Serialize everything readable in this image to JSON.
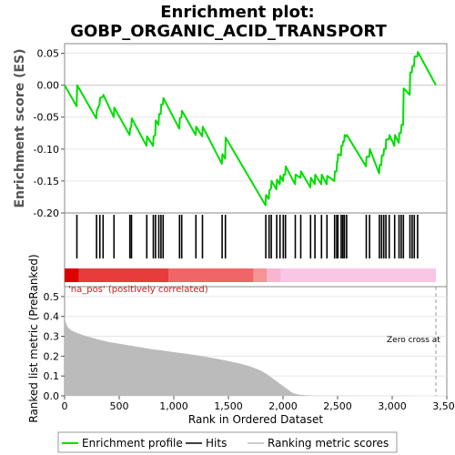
{
  "title_line1": "Enrichment plot:",
  "title_line2": "GOBP_ORGANIC_ACID_TRANSPORT",
  "chart_data": {
    "type": "line",
    "xlim": [
      0,
      3500
    ],
    "x_ticks": [
      "0",
      "500",
      "1,000",
      "1,500",
      "2,000",
      "2,500",
      "3,000",
      "3,500"
    ],
    "x_tick_values": [
      0,
      500,
      1000,
      1500,
      2000,
      2500,
      3000,
      3500
    ],
    "xlabel": "Rank in Ordered Dataset",
    "es_ylabel": "Enrichment score (ES)",
    "es_ylim": [
      -0.2,
      0.065
    ],
    "es_ticks": [
      "0.05",
      "0.00",
      "-0.05",
      "-0.10",
      "-0.15",
      "-0.20"
    ],
    "es_tick_values": [
      0.05,
      0.0,
      -0.05,
      -0.1,
      -0.15,
      -0.2
    ],
    "es_profile_x": [
      0,
      110,
      115,
      290,
      295,
      320,
      325,
      350,
      355,
      450,
      455,
      595,
      600,
      610,
      615,
      750,
      755,
      810,
      815,
      830,
      835,
      860,
      865,
      880,
      885,
      900,
      905,
      1050,
      1055,
      1070,
      1075,
      1200,
      1205,
      1260,
      1265,
      1440,
      1445,
      1470,
      1475,
      1840,
      1845,
      1870,
      1875,
      1890,
      1895,
      1940,
      1945,
      1970,
      1975,
      2000,
      2005,
      2020,
      2025,
      2110,
      2115,
      2160,
      2165,
      2250,
      2255,
      2290,
      2295,
      2350,
      2355,
      2400,
      2405,
      2470,
      2475,
      2490,
      2495,
      2500,
      2505,
      2530,
      2535,
      2545,
      2550,
      2560,
      2565,
      2580,
      2585,
      2760,
      2765,
      2790,
      2795,
      2880,
      2885,
      2900,
      2905,
      2920,
      2925,
      2940,
      2945,
      2970,
      2975,
      3020,
      3025,
      3060,
      3065,
      3080,
      3085,
      3100,
      3105,
      3160,
      3165,
      3180,
      3185,
      3200,
      3205,
      3230,
      3235,
      3400
    ],
    "es_profile_y": [
      0.0,
      -0.033,
      0.0,
      -0.052,
      -0.04,
      -0.03,
      -0.02,
      -0.018,
      -0.015,
      -0.05,
      -0.035,
      -0.078,
      -0.068,
      -0.065,
      -0.052,
      -0.095,
      -0.08,
      -0.095,
      -0.08,
      -0.078,
      -0.055,
      -0.062,
      -0.045,
      -0.045,
      -0.03,
      -0.03,
      -0.02,
      -0.068,
      -0.052,
      -0.05,
      -0.04,
      -0.078,
      -0.065,
      -0.08,
      -0.065,
      -0.123,
      -0.108,
      -0.115,
      -0.082,
      -0.188,
      -0.172,
      -0.178,
      -0.165,
      -0.162,
      -0.15,
      -0.163,
      -0.148,
      -0.155,
      -0.142,
      -0.15,
      -0.14,
      -0.14,
      -0.127,
      -0.155,
      -0.14,
      -0.145,
      -0.135,
      -0.16,
      -0.145,
      -0.155,
      -0.14,
      -0.155,
      -0.14,
      -0.155,
      -0.142,
      -0.15,
      -0.135,
      -0.135,
      -0.12,
      -0.12,
      -0.108,
      -0.11,
      -0.095,
      -0.095,
      -0.088,
      -0.088,
      -0.078,
      -0.08,
      -0.078,
      -0.127,
      -0.112,
      -0.112,
      -0.1,
      -0.138,
      -0.125,
      -0.125,
      -0.11,
      -0.11,
      -0.1,
      -0.1,
      -0.085,
      -0.085,
      -0.078,
      -0.095,
      -0.078,
      -0.09,
      -0.075,
      -0.075,
      -0.062,
      -0.062,
      -0.005,
      -0.015,
      0.02,
      0.02,
      0.03,
      0.03,
      0.045,
      0.045,
      0.052,
      0.0
    ],
    "hits": [
      110,
      115,
      290,
      295,
      320,
      325,
      350,
      355,
      450,
      455,
      595,
      600,
      610,
      615,
      750,
      755,
      810,
      815,
      830,
      835,
      860,
      865,
      880,
      885,
      900,
      905,
      1050,
      1055,
      1070,
      1075,
      1200,
      1205,
      1260,
      1265,
      1440,
      1445,
      1470,
      1475,
      1840,
      1845,
      1870,
      1875,
      1890,
      1895,
      1940,
      1945,
      1970,
      1975,
      2000,
      2005,
      2020,
      2025,
      2110,
      2115,
      2160,
      2165,
      2250,
      2255,
      2290,
      2295,
      2350,
      2355,
      2400,
      2405,
      2470,
      2475,
      2490,
      2495,
      2500,
      2505,
      2530,
      2535,
      2545,
      2550,
      2560,
      2565,
      2580,
      2585,
      2760,
      2765,
      2790,
      2795,
      2880,
      2885,
      2900,
      2905,
      2920,
      2925,
      2940,
      2945,
      2970,
      2975,
      3020,
      3025,
      3060,
      3065,
      3080,
      3085,
      3100,
      3105,
      3160,
      3165,
      3180,
      3185,
      3200,
      3205,
      3230,
      3235
    ],
    "bar_segments": [
      {
        "from": 0,
        "to": 130,
        "color": "#dd0000"
      },
      {
        "from": 130,
        "to": 950,
        "color": "#e83b3b"
      },
      {
        "from": 950,
        "to": 1730,
        "color": "#f06666"
      },
      {
        "from": 1730,
        "to": 1850,
        "color": "#f59595"
      },
      {
        "from": 1850,
        "to": 1980,
        "color": "#f7b6d0"
      },
      {
        "from": 1980,
        "to": 3400,
        "color": "#f9c6e6"
      }
    ],
    "metric_ylabel": "Ranked list metric (PreRanked)",
    "metric_ylim": [
      0.0,
      0.55
    ],
    "metric_ticks": [
      "0.5",
      "0.4",
      "0.3",
      "0.2",
      "0.1",
      "0.0"
    ],
    "metric_tick_values": [
      0.5,
      0.4,
      0.3,
      0.2,
      0.1,
      0.0
    ],
    "metric_x": [
      0,
      10,
      30,
      60,
      100,
      150,
      200,
      300,
      400,
      500,
      600,
      700,
      800,
      900,
      1000,
      1100,
      1200,
      1300,
      1400,
      1500,
      1600,
      1700,
      1750,
      1800,
      1850,
      1900,
      1950,
      2000,
      2050,
      2080,
      2100,
      2150,
      2200,
      2300,
      3400
    ],
    "metric_y": [
      0.4,
      0.37,
      0.345,
      0.33,
      0.32,
      0.31,
      0.3,
      0.285,
      0.272,
      0.262,
      0.253,
      0.244,
      0.235,
      0.228,
      0.22,
      0.213,
      0.205,
      0.196,
      0.186,
      0.175,
      0.163,
      0.148,
      0.138,
      0.126,
      0.11,
      0.09,
      0.07,
      0.05,
      0.03,
      0.018,
      0.012,
      0.006,
      0.003,
      0.001,
      0.0
    ],
    "zero_cross_rank": 3400,
    "annotation_pos": "'na_pos' (positively correlated)",
    "annotation_zero": "Zero cross at",
    "legend": [
      {
        "label": "Enrichment profile",
        "color": "#00dd00"
      },
      {
        "label": "Hits",
        "color": "#000000"
      },
      {
        "label": "Ranking metric scores",
        "color": "#bbbbbb"
      }
    ]
  }
}
